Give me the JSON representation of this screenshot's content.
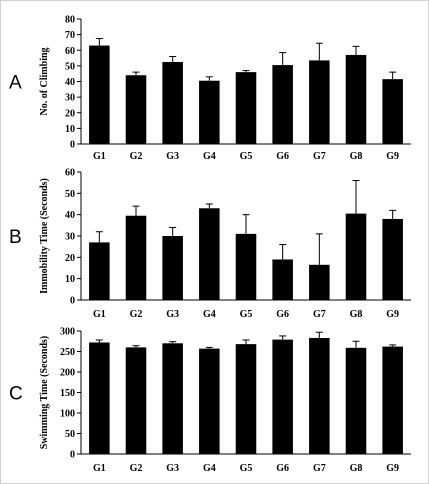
{
  "chart_data": [
    {
      "type": "bar",
      "panel_label": "A",
      "categories": [
        "G1",
        "G2",
        "G3",
        "G4",
        "G5",
        "G6",
        "G7",
        "G8",
        "G9"
      ],
      "values": [
        63,
        44,
        52.5,
        40.5,
        46,
        50.5,
        53.5,
        57,
        41.5
      ],
      "errors": [
        4.5,
        2,
        3.5,
        2.5,
        1,
        8,
        11,
        5.5,
        4.5
      ],
      "ylabel": "No. of Climbing",
      "xlabel": "",
      "ylim": [
        0,
        80
      ],
      "yticks": [
        0,
        10,
        20,
        30,
        40,
        50,
        60,
        70,
        80
      ],
      "bar_color": "#000000"
    },
    {
      "type": "bar",
      "panel_label": "B",
      "categories": [
        "G1",
        "G2",
        "G3",
        "G4",
        "G5",
        "G6",
        "G7",
        "G8",
        "G9"
      ],
      "values": [
        27,
        39.5,
        30,
        43,
        31,
        19,
        16.5,
        40.5,
        38
      ],
      "errors": [
        5,
        4.5,
        4,
        2,
        9,
        7,
        14.5,
        15.5,
        4
      ],
      "ylabel": "Immobility Time (Seconds)",
      "xlabel": "",
      "ylim": [
        0,
        60
      ],
      "yticks": [
        0,
        10,
        20,
        30,
        40,
        50,
        60
      ],
      "bar_color": "#000000"
    },
    {
      "type": "bar",
      "panel_label": "C",
      "categories": [
        "G1",
        "G2",
        "G3",
        "G4",
        "G5",
        "G6",
        "G7",
        "G8",
        "G9"
      ],
      "values": [
        272,
        260,
        270,
        257,
        268,
        279,
        283,
        259,
        262
      ],
      "errors": [
        6,
        4,
        4,
        3,
        10,
        9,
        14,
        16,
        4
      ],
      "ylabel": "Swimming Time (Seconds)",
      "xlabel": "",
      "ylim": [
        0,
        300
      ],
      "yticks": [
        0,
        50,
        100,
        150,
        200,
        250,
        300
      ],
      "bar_color": "#000000"
    }
  ]
}
